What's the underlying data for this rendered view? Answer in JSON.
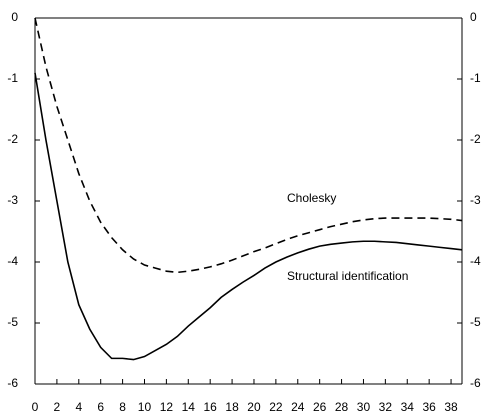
{
  "chart_data": {
    "type": "line",
    "x": [
      0,
      1,
      2,
      3,
      4,
      5,
      6,
      7,
      8,
      9,
      10,
      11,
      12,
      13,
      14,
      15,
      16,
      17,
      18,
      19,
      20,
      21,
      22,
      23,
      24,
      25,
      26,
      27,
      28,
      29,
      30,
      31,
      32,
      33,
      34,
      35,
      36,
      37,
      38,
      39
    ],
    "series": [
      {
        "name": "Cholesky",
        "color": "#000000",
        "dash": true,
        "values": [
          0,
          -0.8,
          -1.45,
          -2.0,
          -2.55,
          -3.0,
          -3.35,
          -3.6,
          -3.8,
          -3.95,
          -4.05,
          -4.1,
          -4.15,
          -4.17,
          -4.15,
          -4.12,
          -4.08,
          -4.03,
          -3.97,
          -3.9,
          -3.83,
          -3.77,
          -3.7,
          -3.63,
          -3.57,
          -3.52,
          -3.47,
          -3.42,
          -3.38,
          -3.34,
          -3.31,
          -3.29,
          -3.28,
          -3.28,
          -3.28,
          -3.28,
          -3.28,
          -3.29,
          -3.3,
          -3.32
        ]
      },
      {
        "name": "Structural identification",
        "color": "#000000",
        "dash": false,
        "values": [
          -0.9,
          -2.0,
          -3.0,
          -4.0,
          -4.7,
          -5.1,
          -5.4,
          -5.58,
          -5.58,
          -5.6,
          -5.55,
          -5.45,
          -5.35,
          -5.22,
          -5.05,
          -4.9,
          -4.75,
          -4.58,
          -4.45,
          -4.33,
          -4.22,
          -4.1,
          -4.0,
          -3.92,
          -3.85,
          -3.79,
          -3.74,
          -3.71,
          -3.69,
          -3.67,
          -3.66,
          -3.66,
          -3.67,
          -3.68,
          -3.7,
          -3.72,
          -3.74,
          -3.76,
          -3.78,
          -3.8
        ]
      }
    ],
    "xlim": [
      0,
      39
    ],
    "xticks": [
      0,
      2,
      4,
      6,
      8,
      10,
      12,
      14,
      16,
      18,
      20,
      22,
      24,
      26,
      28,
      30,
      32,
      34,
      36,
      38
    ],
    "ylim": [
      -6,
      0
    ],
    "yticks": [
      0,
      -1,
      -2,
      -3,
      -4,
      -5,
      -6
    ],
    "y2lim": [
      -6,
      0
    ],
    "y2ticks": [
      0,
      -1,
      -2,
      -3,
      -4,
      -5,
      -6
    ]
  }
}
